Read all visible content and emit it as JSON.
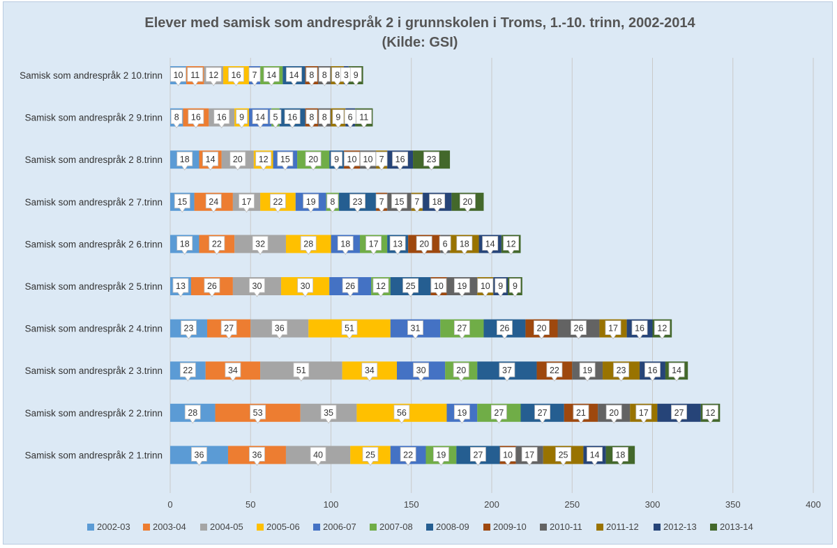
{
  "chart_data": {
    "type": "bar",
    "orientation": "horizontal",
    "stacked": true,
    "title": "Elever med samisk som andrespråk 2 i grunnskolen  i Troms, 1.-10. trinn, 2002-2014",
    "subtitle": "(Kilde: GSI)",
    "xlim": [
      0,
      400
    ],
    "xticks": [
      0,
      50,
      100,
      150,
      200,
      250,
      300,
      350,
      400
    ],
    "grid": true,
    "legend_position": "bottom",
    "categories": [
      "Samisk som andrespråk 2 10.trinn",
      "Samisk som andrespråk 2 9.trinn",
      "Samisk som andrespråk 2 8.trinn",
      "Samisk som andrespråk 2 7.trinn",
      "Samisk som andrespråk 2 6.trinn",
      "Samisk som andrespråk 2 5.trinn",
      "Samisk som andrespråk 2 4.trinn",
      "Samisk som andrespråk 2 3.trinn",
      "Samisk som andrespråk 2 2.trinn",
      "Samisk som andrespråk 2 1.trinn"
    ],
    "series": [
      {
        "name": "2002-03",
        "color": "#5b9bd5",
        "values": [
          10,
          8,
          18,
          15,
          18,
          13,
          23,
          22,
          28,
          36
        ]
      },
      {
        "name": "2003-04",
        "color": "#ed7d31",
        "values": [
          11,
          16,
          14,
          24,
          22,
          26,
          27,
          34,
          53,
          36
        ]
      },
      {
        "name": "2004-05",
        "color": "#a5a5a5",
        "values": [
          12,
          16,
          20,
          17,
          32,
          30,
          36,
          51,
          35,
          40
        ]
      },
      {
        "name": "2005-06",
        "color": "#ffc000",
        "values": [
          16,
          9,
          12,
          22,
          28,
          30,
          51,
          34,
          56,
          25
        ]
      },
      {
        "name": "2006-07",
        "color": "#4472c4",
        "values": [
          7,
          14,
          15,
          19,
          18,
          26,
          31,
          30,
          19,
          22
        ]
      },
      {
        "name": "2007-08",
        "color": "#70ad47",
        "values": [
          14,
          5,
          20,
          8,
          17,
          12,
          27,
          20,
          27,
          19
        ]
      },
      {
        "name": "2008-09",
        "color": "#255e91",
        "values": [
          14,
          16,
          9,
          23,
          13,
          25,
          26,
          37,
          27,
          27
        ]
      },
      {
        "name": "2009-10",
        "color": "#9e480e",
        "values": [
          8,
          8,
          10,
          7,
          20,
          10,
          20,
          22,
          21,
          10
        ]
      },
      {
        "name": "2010-11",
        "color": "#636363",
        "values": [
          8,
          8,
          10,
          15,
          6,
          19,
          26,
          19,
          20,
          17
        ]
      },
      {
        "name": "2011-12",
        "color": "#997300",
        "values": [
          8,
          9,
          7,
          7,
          18,
          10,
          17,
          23,
          17,
          25
        ]
      },
      {
        "name": "2012-13",
        "color": "#264478",
        "values": [
          3,
          6,
          16,
          18,
          14,
          9,
          16,
          16,
          27,
          14
        ]
      },
      {
        "name": "2013-14",
        "color": "#43682b",
        "values": [
          9,
          11,
          23,
          20,
          12,
          9,
          12,
          14,
          12,
          18
        ]
      }
    ]
  }
}
